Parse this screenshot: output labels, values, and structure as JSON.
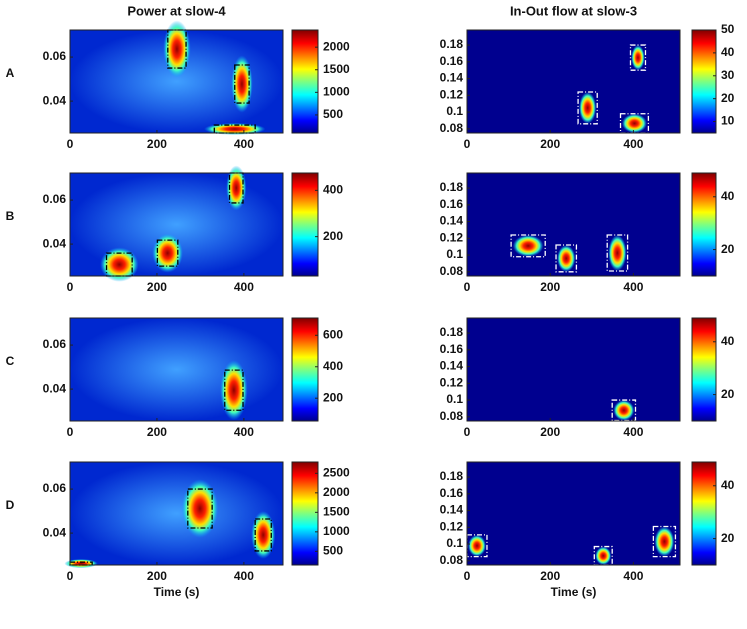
{
  "chart_data": [
    {
      "type": "heatmap",
      "title": "Power at slow-4",
      "label": "A",
      "xlim": [
        0,
        490
      ],
      "xticks": [
        0,
        200,
        400
      ],
      "ylim": [
        0.0255,
        0.0723
      ],
      "yticks": [
        0.04,
        0.06
      ],
      "clim": [
        100,
        2380
      ],
      "cticks": [
        500,
        1000,
        1500,
        2000
      ],
      "box_color": "#000",
      "regions": [
        [
          225,
          267,
          0.055,
          0.0723
        ],
        [
          379,
          412,
          0.0391,
          0.0564
        ],
        [
          332,
          426,
          0.0255,
          0.0291
        ]
      ]
    },
    {
      "type": "heatmap",
      "title": "In-Out flow at slow-3",
      "xlim": [
        0,
        512
      ],
      "xticks": [
        0,
        200,
        400
      ],
      "ylim": [
        0.075,
        0.198
      ],
      "yticks": [
        0.08,
        0.1,
        0.12,
        0.14,
        0.16,
        0.18
      ],
      "clim": [
        5,
        50
      ],
      "cticks": [
        10,
        20,
        30,
        40,
        50
      ],
      "box_color": "#fff",
      "regions": [
        [
          393,
          429,
          0.15,
          0.18
        ],
        [
          267,
          313,
          0.086,
          0.124
        ],
        [
          369,
          436,
          0.075,
          0.098
        ]
      ]
    },
    {
      "type": "heatmap",
      "label": "B",
      "xlim": [
        0,
        490
      ],
      "xticks": [
        0,
        200,
        400
      ],
      "ylim": [
        0.0255,
        0.0723
      ],
      "yticks": [
        0.04,
        0.06
      ],
      "clim": [
        30,
        475
      ],
      "cticks": [
        200,
        400
      ],
      "box_color": "#000",
      "regions": [
        [
          367,
          398,
          0.0587,
          0.0723
        ],
        [
          201,
          248,
          0.03,
          0.0418
        ],
        [
          84,
          143,
          0.0255,
          0.0359
        ]
      ]
    },
    {
      "type": "heatmap",
      "xlim": [
        0,
        512
      ],
      "xticks": [
        0,
        200,
        400
      ],
      "ylim": [
        0.075,
        0.198
      ],
      "yticks": [
        0.08,
        0.1,
        0.12,
        0.14,
        0.16,
        0.18
      ],
      "clim": [
        10,
        49
      ],
      "cticks": [
        20,
        40
      ],
      "box_color": "#fff",
      "regions": [
        [
          106,
          188,
          0.098,
          0.124
        ],
        [
          214,
          263,
          0.08,
          0.112
        ],
        [
          337,
          386,
          0.081,
          0.124
        ]
      ]
    },
    {
      "type": "heatmap",
      "label": "C",
      "xlim": [
        0,
        490
      ],
      "xticks": [
        0,
        200,
        400
      ],
      "ylim": [
        0.0255,
        0.0723
      ],
      "yticks": [
        0.04,
        0.06
      ],
      "clim": [
        55,
        710
      ],
      "cticks": [
        200,
        400,
        600
      ],
      "box_color": "#000",
      "regions": [
        [
          356,
          398,
          0.0304,
          0.0486
        ]
      ]
    },
    {
      "type": "heatmap",
      "xlim": [
        0,
        512
      ],
      "xticks": [
        0,
        200,
        400
      ],
      "ylim": [
        0.075,
        0.198
      ],
      "yticks": [
        0.08,
        0.1,
        0.12,
        0.14,
        0.16,
        0.18
      ],
      "clim": [
        10,
        49
      ],
      "cticks": [
        20,
        40
      ],
      "box_color": "#fff",
      "regions": [
        [
          349,
          405,
          0.0755,
          0.1
        ]
      ]
    },
    {
      "type": "heatmap",
      "label": "D",
      "xlabel": "Time (s)",
      "xlim": [
        0,
        490
      ],
      "xticks": [
        0,
        200,
        400
      ],
      "ylim": [
        0.0255,
        0.0723
      ],
      "yticks": [
        0.04,
        0.06
      ],
      "clim": [
        150,
        2790
      ],
      "cticks": [
        500,
        1000,
        1500,
        2000,
        2500
      ],
      "box_color": "#000",
      "regions": [
        [
          271,
          327,
          0.0423,
          0.06
        ],
        [
          426,
          463,
          0.0319,
          0.0464
        ],
        [
          0,
          51,
          0.0255,
          0.0268
        ]
      ]
    },
    {
      "type": "heatmap",
      "xlabel": "Time (s)",
      "xlim": [
        0,
        512
      ],
      "xticks": [
        0,
        200,
        400
      ],
      "ylim": [
        0.075,
        0.198
      ],
      "yticks": [
        0.08,
        0.1,
        0.12,
        0.14,
        0.16,
        0.18
      ],
      "clim": [
        10,
        49
      ],
      "cticks": [
        20,
        40
      ],
      "box_color": "#fff",
      "regions": [
        [
          0,
          48,
          0.085,
          0.111
        ],
        [
          306,
          349,
          0.075,
          0.097
        ],
        [
          448,
          501,
          0.085,
          0.121
        ]
      ]
    }
  ]
}
